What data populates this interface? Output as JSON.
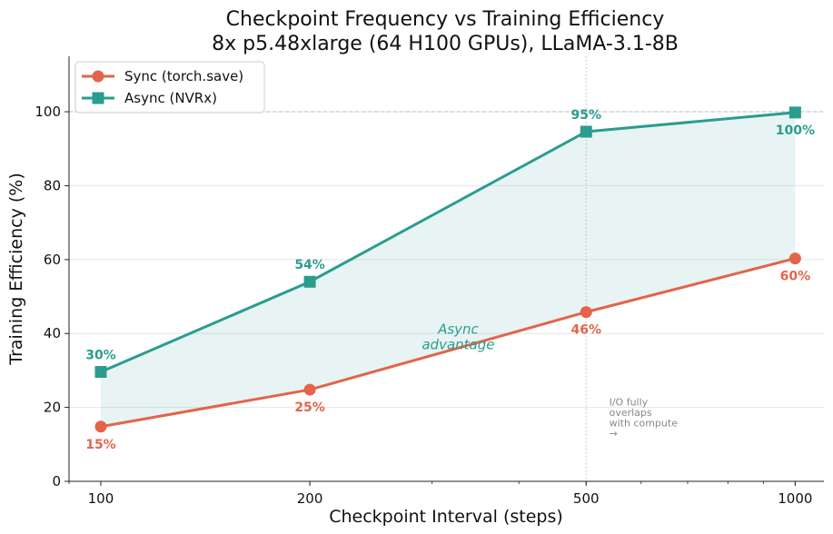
{
  "chart_data": {
    "type": "line",
    "title": "Checkpoint Frequency vs Training Efficiency",
    "subtitle": "8x p5.48xlarge (64 H100 GPUs), LLaMA-3.1-8B",
    "xlabel": "Checkpoint Interval (steps)",
    "ylabel": "Training Efficiency (%)",
    "x_scale": "log",
    "x": [
      100,
      200,
      500,
      1000
    ],
    "x_tick_labels": [
      "100",
      "200",
      "500",
      "1000"
    ],
    "xlim": [
      90,
      1100
    ],
    "ylim": [
      0,
      115
    ],
    "y_ticks": [
      0,
      20,
      40,
      60,
      80,
      100
    ],
    "y_tick_labels": [
      "0",
      "20",
      "40",
      "60",
      "80",
      "100"
    ],
    "grid": "horizontal",
    "legend_position": "top-left",
    "series": [
      {
        "name": "Sync (torch.save)",
        "marker": "circle",
        "color": "#e3644a",
        "values": [
          14.8,
          24.8,
          45.8,
          60.3
        ],
        "labels": [
          "15%",
          "25%",
          "46%",
          "60%"
        ]
      },
      {
        "name": "Async (NVRx)",
        "marker": "square",
        "color": "#2a9d8f",
        "values": [
          29.6,
          54.0,
          94.6,
          99.8
        ],
        "labels": [
          "30%",
          "54%",
          "95%",
          "100%"
        ]
      }
    ],
    "reference_lines": [
      {
        "axis": "y",
        "value": 100
      },
      {
        "axis": "x",
        "value": 500
      }
    ],
    "annotations": [
      {
        "text_lines": [
          "Async",
          "advantage"
        ],
        "x": 290,
        "y": 38
      },
      {
        "text_lines": [
          "I/O fully",
          "overlaps",
          "with compute",
          "→"
        ],
        "x": 530,
        "y": 18
      }
    ]
  }
}
